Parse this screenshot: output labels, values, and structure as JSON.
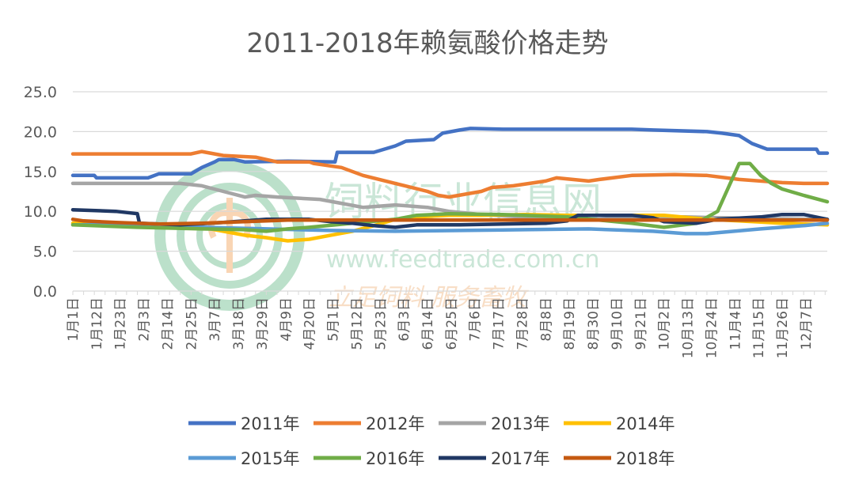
{
  "watermark": {
    "cn": "饲料行业信息网",
    "url": "www.feedtrade.com.cn",
    "slogan": "立足饲料 服务畜牧"
  },
  "chart_data": {
    "type": "line",
    "title": "2011-2018年赖氨酸价格走势",
    "xlabel": "",
    "ylabel": "",
    "ylim": [
      0,
      25
    ],
    "y_ticks": [
      "0.0",
      "5.0",
      "10.0",
      "15.0",
      "20.0",
      "25.0"
    ],
    "grid": true,
    "legend_position": "bottom",
    "x_ticks": [
      "1月1日",
      "1月12日",
      "1月23日",
      "2月3日",
      "2月14日",
      "2月25日",
      "3月7日",
      "3月18日",
      "3月29日",
      "4月9日",
      "4月20日",
      "5月1日",
      "5月12日",
      "5月23日",
      "6月3日",
      "6月14日",
      "6月25日",
      "7月6日",
      "7月17日",
      "7月28日",
      "8月8日",
      "8月19日",
      "8月30日",
      "9月10日",
      "9月21日",
      "10月2日",
      "10月13日",
      "10月24日",
      "11月4日",
      "11月15日",
      "11月26日",
      "12月7日"
    ],
    "x_domain_days": [
      0,
      351
    ],
    "series": [
      {
        "name": "2011年",
        "color": "#4472c4",
        "x": [
          0,
          10,
          11,
          35,
          40,
          55,
          60,
          66,
          68,
          75,
          80,
          100,
          122,
          123,
          140,
          150,
          155,
          168,
          172,
          180,
          185,
          200,
          260,
          270,
          295,
          302,
          310,
          316,
          323,
          346,
          347,
          351
        ],
        "values": [
          14.5,
          14.5,
          14.2,
          14.2,
          14.7,
          14.7,
          15.5,
          16.2,
          16.5,
          16.5,
          16.2,
          16.3,
          16.2,
          17.4,
          17.4,
          18.2,
          18.8,
          19.0,
          19.8,
          20.2,
          20.4,
          20.3,
          20.3,
          20.2,
          20.0,
          19.8,
          19.5,
          18.5,
          17.8,
          17.8,
          17.3,
          17.3
        ]
      },
      {
        "name": "2012年",
        "color": "#ed7d31",
        "x": [
          0,
          55,
          60,
          70,
          85,
          95,
          110,
          112,
          125,
          135,
          150,
          165,
          170,
          175,
          190,
          195,
          205,
          220,
          225,
          240,
          245,
          260,
          280,
          295,
          310,
          320,
          330,
          340,
          351
        ],
        "values": [
          17.2,
          17.2,
          17.5,
          17.0,
          16.8,
          16.2,
          16.2,
          16.0,
          15.5,
          14.5,
          13.5,
          12.5,
          12.0,
          11.8,
          12.5,
          13.0,
          13.2,
          13.8,
          14.2,
          13.8,
          14.0,
          14.5,
          14.6,
          14.5,
          14.0,
          13.8,
          13.6,
          13.5,
          13.5
        ]
      },
      {
        "name": "2013年",
        "color": "#a5a5a5",
        "x": [
          0,
          50,
          60,
          70,
          80,
          85,
          95,
          115,
          125,
          135,
          150,
          165,
          175,
          190,
          215,
          235,
          245,
          255,
          275,
          285,
          300,
          320,
          340,
          351
        ],
        "values": [
          13.5,
          13.5,
          13.2,
          12.5,
          11.8,
          12.0,
          11.8,
          11.5,
          11.0,
          10.5,
          10.8,
          10.5,
          10.0,
          9.6,
          9.2,
          9.0,
          9.0,
          9.2,
          9.3,
          9.3,
          9.2,
          9.1,
          9.0,
          9.0
        ]
      },
      {
        "name": "2014年",
        "color": "#ffc000",
        "x": [
          0,
          30,
          60,
          70,
          80,
          90,
          95,
          100,
          110,
          120,
          130,
          140,
          150,
          160,
          175,
          190,
          210,
          230,
          250,
          275,
          295,
          310,
          330,
          351
        ],
        "values": [
          8.5,
          8.3,
          8.0,
          7.5,
          7.0,
          6.7,
          6.5,
          6.3,
          6.5,
          7.0,
          7.5,
          8.2,
          9.0,
          9.3,
          9.5,
          9.5,
          9.6,
          9.5,
          9.5,
          9.5,
          9.0,
          8.8,
          8.5,
          8.3
        ]
      },
      {
        "name": "2015年",
        "color": "#5b9bd5",
        "x": [
          0,
          30,
          60,
          90,
          120,
          150,
          180,
          210,
          240,
          270,
          285,
          295,
          320,
          340,
          351
        ],
        "values": [
          8.3,
          8.3,
          8.0,
          7.8,
          7.6,
          7.5,
          7.6,
          7.7,
          7.8,
          7.5,
          7.2,
          7.2,
          7.8,
          8.2,
          8.5
        ]
      },
      {
        "name": "2016年",
        "color": "#70ad47",
        "x": [
          0,
          30,
          60,
          80,
          90,
          100,
          110,
          130,
          150,
          160,
          175,
          200,
          230,
          260,
          275,
          290,
          300,
          305,
          310,
          315,
          320,
          325,
          330,
          340,
          351
        ],
        "values": [
          8.3,
          8.0,
          7.8,
          7.7,
          7.5,
          7.8,
          8.0,
          8.5,
          9.0,
          9.5,
          9.7,
          9.6,
          9.3,
          8.5,
          8.0,
          8.5,
          10.0,
          13.0,
          16.0,
          16.0,
          14.5,
          13.5,
          12.8,
          12.0,
          11.2
        ]
      },
      {
        "name": "2017年",
        "color": "#203864",
        "x": [
          0,
          20,
          30,
          31,
          50,
          70,
          90,
          110,
          120,
          130,
          140,
          150,
          160,
          180,
          200,
          220,
          230,
          235,
          260,
          270,
          275,
          290,
          300,
          320,
          330,
          340,
          351
        ],
        "values": [
          10.2,
          10.0,
          9.7,
          8.5,
          8.3,
          8.6,
          9.0,
          9.0,
          8.7,
          8.5,
          8.2,
          8.0,
          8.3,
          8.3,
          8.4,
          8.5,
          8.8,
          9.5,
          9.5,
          9.2,
          8.7,
          8.5,
          9.0,
          9.3,
          9.6,
          9.6,
          9.0
        ]
      },
      {
        "name": "2018年",
        "color": "#c55a11",
        "x": [
          0,
          5,
          20,
          40,
          60,
          80,
          100,
          351
        ],
        "values": [
          9.0,
          8.8,
          8.6,
          8.4,
          8.5,
          8.7,
          8.9,
          8.9
        ]
      }
    ]
  }
}
